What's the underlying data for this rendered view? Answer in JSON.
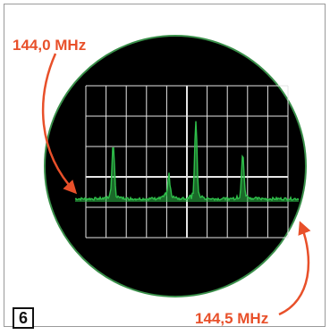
{
  "labels": {
    "start_freq": "144,0 MHz",
    "end_freq": "144,5 MHz"
  },
  "figure_number": "6",
  "colors": {
    "screen": "#000000",
    "rim": "#3a8f4a",
    "grid": "#e6e6e6",
    "trace": "#2fbf4a",
    "annotation": "#e8502a"
  },
  "grid": {
    "columns": 10,
    "rows": 5
  },
  "spectrum_peaks": [
    {
      "position": 0.17,
      "level": 0.62
    },
    {
      "position": 0.42,
      "level": 0.18
    },
    {
      "position": 0.54,
      "level": 0.9
    },
    {
      "position": 0.75,
      "level": 0.48
    }
  ]
}
